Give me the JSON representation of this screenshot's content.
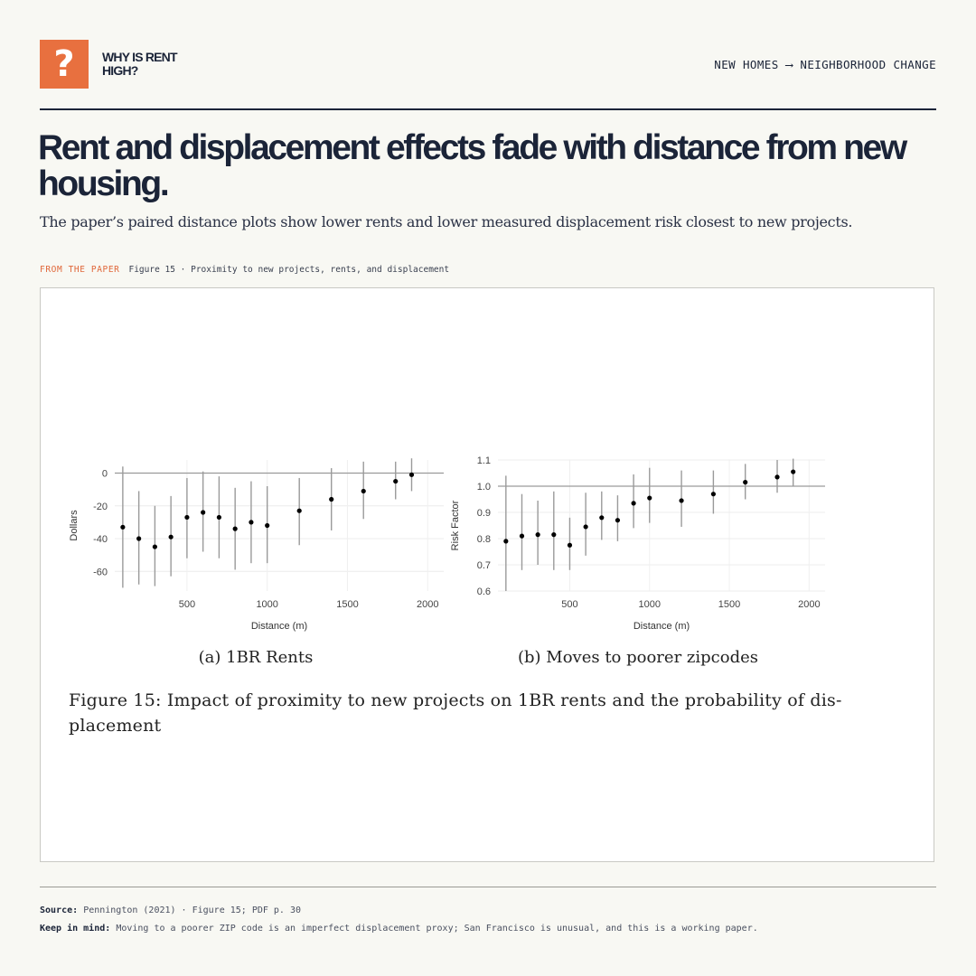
{
  "brand": {
    "logo_glyph": "?",
    "name": "WHY IS RENT HIGH?",
    "accent_color": "#e8703f",
    "logo_icon": "question-mark-icon"
  },
  "header": {
    "topic": "NEW HOMES ⟶ NEIGHBORHOOD CHANGE"
  },
  "headline": "Rent and displacement effects fade with distance from new housing.",
  "subhead": "The paper’s paired distance plots show lower rents and lower measured displacement risk closest to new projects.",
  "figure_label": {
    "kicker": "FROM THE PAPER",
    "text": "Figure 15 · Proximity to new projects, rents, and displacement"
  },
  "figure_caption": "Figure 15: Impact of proximity to new projects on 1BR rents and the probability of dis- placement",
  "footer": {
    "source_label": "Source:",
    "source_text": "Pennington (2021) · Figure 15; PDF p. 30",
    "note_label": "Keep in mind:",
    "note_text": "Moving to a poorer ZIP code is an imperfect displacement proxy; San Francisco is unusual, and this is a working paper."
  },
  "chart_data": [
    {
      "type": "scatter",
      "subtitle": "(a) 1BR Rents",
      "xlabel": "Distance (m)",
      "ylabel": "Dollars",
      "xlim": [
        50,
        2100
      ],
      "ylim": [
        -72,
        8
      ],
      "x_ticks": [
        500,
        1000,
        1500,
        2000
      ],
      "y_ticks": [
        0,
        -20,
        -40,
        -60
      ],
      "reference_line": 0,
      "grid": true,
      "points": [
        {
          "x": 100,
          "y": -33,
          "lo": -70,
          "hi": 4
        },
        {
          "x": 200,
          "y": -40,
          "lo": -68,
          "hi": -11
        },
        {
          "x": 300,
          "y": -45,
          "lo": -69,
          "hi": -20
        },
        {
          "x": 400,
          "y": -39,
          "lo": -63,
          "hi": -14
        },
        {
          "x": 500,
          "y": -27,
          "lo": -52,
          "hi": -3
        },
        {
          "x": 600,
          "y": -24,
          "lo": -48,
          "hi": 1
        },
        {
          "x": 700,
          "y": -27,
          "lo": -52,
          "hi": -2
        },
        {
          "x": 800,
          "y": -34,
          "lo": -59,
          "hi": -9
        },
        {
          "x": 900,
          "y": -30,
          "lo": -55,
          "hi": -5
        },
        {
          "x": 1000,
          "y": -32,
          "lo": -55,
          "hi": -8
        },
        {
          "x": 1200,
          "y": -23,
          "lo": -44,
          "hi": -3
        },
        {
          "x": 1400,
          "y": -16,
          "lo": -35,
          "hi": 3
        },
        {
          "x": 1600,
          "y": -11,
          "lo": -28,
          "hi": 7
        },
        {
          "x": 1800,
          "y": -5,
          "lo": -16,
          "hi": 7
        },
        {
          "x": 1900,
          "y": -1,
          "lo": -11,
          "hi": 9
        }
      ]
    },
    {
      "type": "scatter",
      "subtitle": "(b) Moves to poorer zipcodes",
      "xlabel": "Distance (m)",
      "ylabel": "Risk Factor",
      "xlim": [
        50,
        2100
      ],
      "ylim": [
        0.6,
        1.1
      ],
      "x_ticks": [
        500,
        1000,
        1500,
        2000
      ],
      "y_ticks": [
        1.1,
        1.0,
        0.9,
        0.8,
        0.7,
        0.6
      ],
      "y_tick_labels": [
        "1.1",
        "1.0",
        "0.9",
        "0.8",
        "0.7",
        "0.6"
      ],
      "reference_line": 1.0,
      "grid": true,
      "points": [
        {
          "x": 100,
          "y": 0.79,
          "lo": 0.6,
          "hi": 1.04
        },
        {
          "x": 200,
          "y": 0.81,
          "lo": 0.68,
          "hi": 0.97
        },
        {
          "x": 300,
          "y": 0.815,
          "lo": 0.7,
          "hi": 0.945
        },
        {
          "x": 400,
          "y": 0.815,
          "lo": 0.68,
          "hi": 0.98
        },
        {
          "x": 500,
          "y": 0.775,
          "lo": 0.68,
          "hi": 0.88
        },
        {
          "x": 600,
          "y": 0.845,
          "lo": 0.735,
          "hi": 0.975
        },
        {
          "x": 700,
          "y": 0.88,
          "lo": 0.795,
          "hi": 0.98
        },
        {
          "x": 800,
          "y": 0.87,
          "lo": 0.79,
          "hi": 0.965
        },
        {
          "x": 900,
          "y": 0.935,
          "lo": 0.84,
          "hi": 1.045
        },
        {
          "x": 1000,
          "y": 0.955,
          "lo": 0.86,
          "hi": 1.07
        },
        {
          "x": 1200,
          "y": 0.945,
          "lo": 0.845,
          "hi": 1.06
        },
        {
          "x": 1400,
          "y": 0.97,
          "lo": 0.895,
          "hi": 1.06
        },
        {
          "x": 1600,
          "y": 1.015,
          "lo": 0.95,
          "hi": 1.085
        },
        {
          "x": 1800,
          "y": 1.035,
          "lo": 0.975,
          "hi": 1.1
        },
        {
          "x": 1900,
          "y": 1.055,
          "lo": 1.0,
          "hi": 1.105
        }
      ]
    }
  ]
}
